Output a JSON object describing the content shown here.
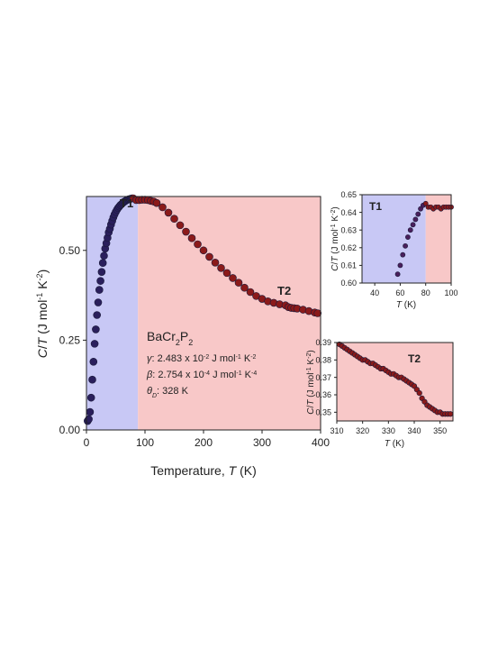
{
  "chart_data": [
    {
      "type": "scatter",
      "id": "main",
      "xlabel_text": "Temperature, ",
      "xlabel_var": "T",
      "xlabel_unit": " (K)",
      "ylabel": "C/T (J mol-1 K-2)",
      "xlim": [
        0,
        400
      ],
      "ylim": [
        0,
        0.65
      ],
      "xticks": [
        "0",
        "100",
        "200",
        "300",
        "400"
      ],
      "yticks": [
        "0.00",
        "0.25",
        "0.50"
      ],
      "regions": [
        {
          "label": "T1",
          "x0": 0,
          "x1": 88,
          "color": "#c8c8f5"
        },
        {
          "label": "T2",
          "x0": 88,
          "x1": 400,
          "color": "#f8c8c8"
        }
      ],
      "region_labels": {
        "T1": "T1",
        "T2": "T2"
      },
      "compound": "BaCr2P2",
      "params": {
        "gamma": "2.483 x 10-2 J mol-1 K-2",
        "beta": "2.754 x 10-4 J mol-1 K-4",
        "theta": "328 K"
      },
      "series": [
        {
          "x": [
            2,
            4,
            6,
            8,
            10,
            12,
            14,
            16,
            18,
            20,
            22,
            24,
            26,
            28,
            30,
            32,
            34,
            36,
            38,
            40,
            42,
            44,
            46,
            48,
            50,
            52,
            54,
            56,
            58,
            60,
            62,
            64,
            66,
            68,
            70,
            72,
            74,
            76,
            78,
            80,
            85,
            90,
            95,
            100,
            105,
            110,
            115,
            120,
            130,
            140,
            150,
            160,
            170,
            180,
            190,
            200,
            210,
            220,
            230,
            240,
            250,
            260,
            270,
            280,
            290,
            300,
            310,
            320,
            330,
            340,
            345,
            350,
            355,
            360,
            370,
            380,
            390,
            395
          ],
          "y": [
            0.025,
            0.03,
            0.05,
            0.09,
            0.14,
            0.19,
            0.24,
            0.28,
            0.32,
            0.355,
            0.39,
            0.415,
            0.44,
            0.465,
            0.485,
            0.505,
            0.52,
            0.535,
            0.55,
            0.56,
            0.572,
            0.582,
            0.592,
            0.6,
            0.607,
            0.613,
            0.618,
            0.622,
            0.626,
            0.629,
            0.632,
            0.635,
            0.637,
            0.639,
            0.641,
            0.642,
            0.643,
            0.644,
            0.645,
            0.645,
            0.64,
            0.64,
            0.641,
            0.641,
            0.64,
            0.638,
            0.636,
            0.632,
            0.62,
            0.605,
            0.588,
            0.57,
            0.552,
            0.534,
            0.517,
            0.5,
            0.482,
            0.466,
            0.451,
            0.437,
            0.423,
            0.41,
            0.396,
            0.384,
            0.373,
            0.365,
            0.358,
            0.354,
            0.35,
            0.347,
            0.342,
            0.34,
            0.339,
            0.338,
            0.335,
            0.331,
            0.327,
            0.325
          ],
          "color": "#8b1a1a"
        }
      ]
    },
    {
      "type": "scatter",
      "id": "inset-t1",
      "title": "T1",
      "xlabel": "T (K)",
      "ylabel": "C/T (J mol-1 K-2)",
      "xlim": [
        30,
        100
      ],
      "ylim": [
        0.6,
        0.65
      ],
      "xticks": [
        "40",
        "60",
        "80",
        "100"
      ],
      "yticks": [
        "0.60",
        "0.61",
        "0.62",
        "0.63",
        "0.64",
        "0.65"
      ],
      "split_x": 80,
      "series": [
        {
          "x": [
            58,
            60,
            62,
            64,
            66,
            68,
            70,
            72,
            74,
            76,
            78,
            80,
            82,
            84,
            86,
            88,
            90,
            92,
            94,
            96,
            98,
            100
          ],
          "y": [
            0.605,
            0.61,
            0.616,
            0.621,
            0.626,
            0.63,
            0.633,
            0.636,
            0.639,
            0.642,
            0.644,
            0.645,
            0.643,
            0.643,
            0.642,
            0.643,
            0.643,
            0.642,
            0.643,
            0.643,
            0.643,
            0.643
          ],
          "color": "#8b1a1a"
        }
      ]
    },
    {
      "type": "scatter",
      "id": "inset-t2",
      "title": "T2",
      "xlabel": "T (K)",
      "ylabel": "C/T (J mol-1 K-2)",
      "xlim": [
        310,
        355
      ],
      "ylim": [
        0.345,
        0.39
      ],
      "xticks": [
        "310",
        "320",
        "330",
        "340",
        "350"
      ],
      "yticks": [
        "0.35",
        "0.36",
        "0.37",
        "0.38",
        "0.39"
      ],
      "series": [
        {
          "x": [
            311,
            312,
            313,
            314,
            315,
            316,
            317,
            318,
            319,
            320,
            321,
            322,
            323,
            324,
            325,
            326,
            327,
            328,
            329,
            330,
            331,
            332,
            333,
            334,
            335,
            336,
            337,
            338,
            339,
            340,
            341,
            342,
            343,
            344,
            345,
            346,
            347,
            348,
            349,
            350,
            351,
            352,
            353,
            354
          ],
          "y": [
            0.389,
            0.388,
            0.387,
            0.386,
            0.385,
            0.384,
            0.383,
            0.382,
            0.381,
            0.38,
            0.38,
            0.379,
            0.378,
            0.378,
            0.377,
            0.376,
            0.375,
            0.375,
            0.374,
            0.373,
            0.372,
            0.372,
            0.371,
            0.37,
            0.37,
            0.369,
            0.368,
            0.367,
            0.366,
            0.365,
            0.363,
            0.361,
            0.358,
            0.356,
            0.354,
            0.353,
            0.352,
            0.351,
            0.35,
            0.35,
            0.349,
            0.349,
            0.349,
            0.349
          ],
          "color": "#8b1a1a"
        }
      ]
    }
  ]
}
